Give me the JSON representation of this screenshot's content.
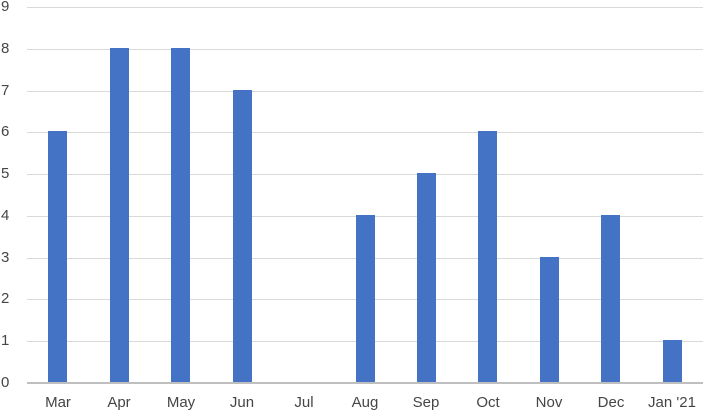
{
  "chart_data": {
    "type": "bar",
    "title": "",
    "xlabel": "",
    "ylabel": "",
    "categories": [
      "Mar",
      "Apr",
      "May",
      "Jun",
      "Jul",
      "Aug",
      "Sep",
      "Oct",
      "Nov",
      "Dec",
      "Jan '21"
    ],
    "values": [
      6,
      8,
      8,
      7,
      0,
      4,
      5,
      6,
      3,
      4,
      1
    ],
    "ylim": [
      0,
      9
    ],
    "ytick_step": 1,
    "ytick_labels": [
      "0",
      "1",
      "2",
      "3",
      "4",
      "5",
      "6",
      "7",
      "8",
      "9"
    ],
    "grid": true,
    "legend": false,
    "bar_color": "#4472C4",
    "gridline_color": "#D9D9D9",
    "axis_line_color": "#BFBFBF",
    "tick_label_color": "#454545",
    "background_color": "#FFFFFF"
  }
}
